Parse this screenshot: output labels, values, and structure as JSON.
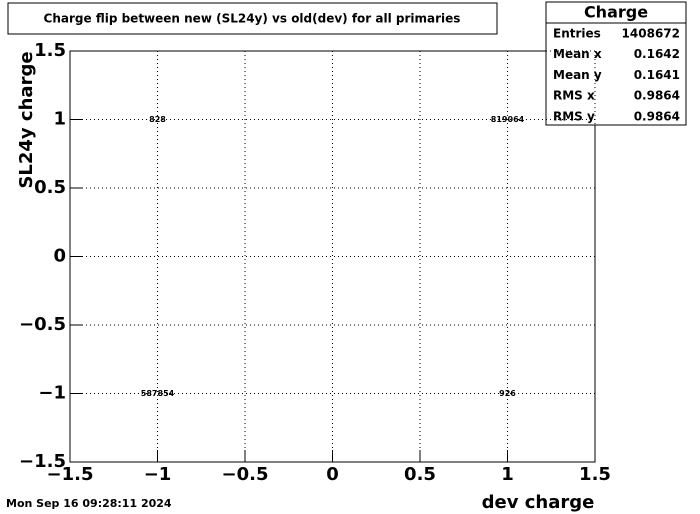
{
  "chart_data": {
    "type": "text2d",
    "title": "Charge flip between new (SL24y) vs old(dev) for all primaries",
    "x_label": "dev charge",
    "y_label": "SL24y charge",
    "xlim": [
      -1.5,
      1.5
    ],
    "ylim": [
      -1.5,
      1.5
    ],
    "xticks": [
      {
        "value": -1.5,
        "label": "−1.5"
      },
      {
        "value": -1,
        "label": "−1"
      },
      {
        "value": -0.5,
        "label": "−0.5"
      },
      0,
      0.5,
      1,
      1.5
    ],
    "yticks": [
      {
        "value": -1.5,
        "label": "−1.5"
      },
      {
        "value": -1,
        "label": "−1"
      },
      {
        "value": -0.5,
        "label": "−0.5"
      },
      0,
      0.5,
      1,
      1.5
    ],
    "grid": true,
    "x": [
      -1,
      1,
      -1,
      1
    ],
    "y": [
      1,
      1,
      -1,
      -1
    ],
    "counts": [
      828,
      819064,
      587854,
      926
    ],
    "stats": {
      "title": "Charge",
      "rows": [
        {
          "label": "Entries",
          "value": 1408672
        },
        {
          "label": "Mean x",
          "value": 0.1642
        },
        {
          "label": "Mean y",
          "value": 0.1641
        },
        {
          "label": "RMS x",
          "value": 0.9864
        },
        {
          "label": "RMS y",
          "value": 0.9864
        }
      ]
    },
    "timestamp": "Mon Sep 16 09:28:11 2024"
  }
}
